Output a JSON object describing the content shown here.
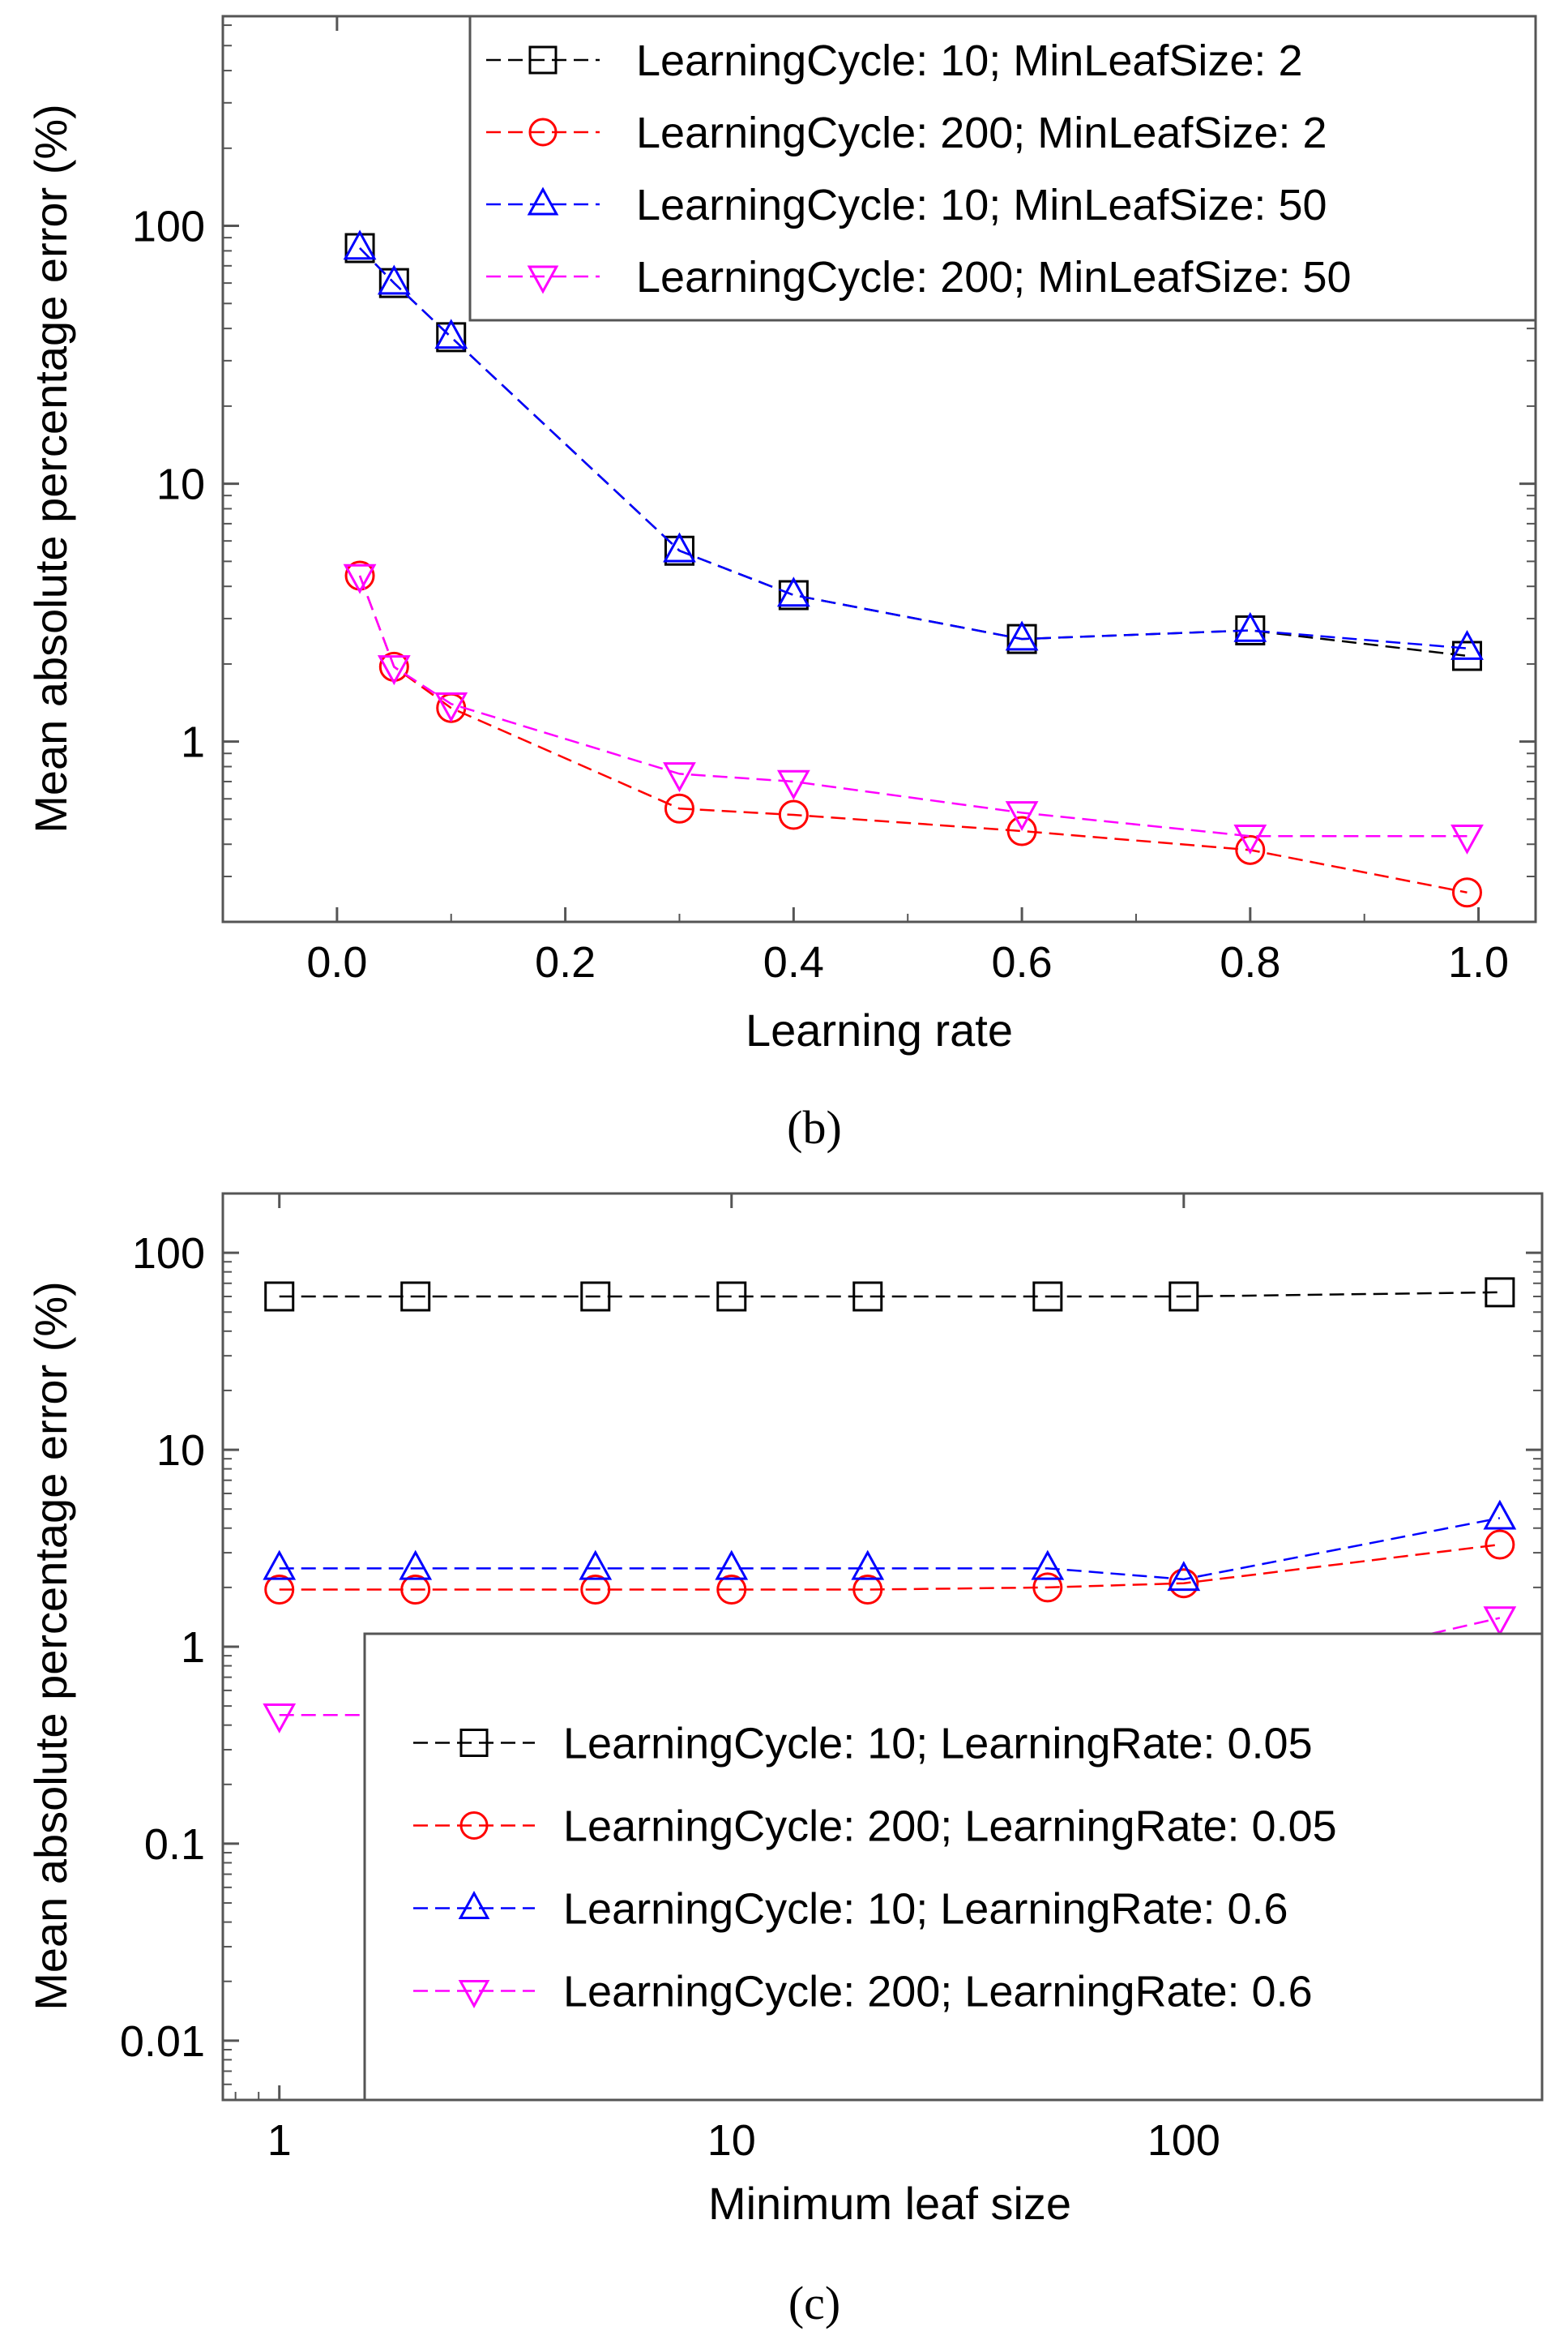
{
  "chart_data": [
    {
      "type": "line",
      "panel_label": "(b)",
      "xlabel": "Learning rate",
      "ylabel": "Mean absolute percentage error (%)",
      "xlim": [
        -0.1,
        1.05
      ],
      "ylim": [
        0.2,
        650
      ],
      "yscale": "log",
      "xticks": [
        0.0,
        0.2,
        0.4,
        0.6,
        0.8,
        1.0
      ],
      "xtick_labels": [
        "0.0",
        "0.2",
        "0.4",
        "0.6",
        "0.8",
        "1.0"
      ],
      "yticks": [
        1,
        10,
        100
      ],
      "ytick_labels": [
        "1",
        "10",
        "100"
      ],
      "legend_position": "top-right",
      "series": [
        {
          "name": "LearningCycle: 10; MinLeafSize: 2",
          "marker": "square",
          "color": "#000000",
          "x": [
            0.02,
            0.05,
            0.1,
            0.3,
            0.4,
            0.6,
            0.8,
            0.99
          ],
          "y": [
            82,
            60,
            37,
            5.5,
            3.7,
            2.5,
            2.7,
            2.15
          ]
        },
        {
          "name": "LearningCycle: 200; MinLeafSize: 2",
          "marker": "circle",
          "color": "#ff0000",
          "x": [
            0.02,
            0.05,
            0.1,
            0.3,
            0.4,
            0.6,
            0.8,
            0.99
          ],
          "y": [
            4.4,
            1.95,
            1.35,
            0.55,
            0.52,
            0.45,
            0.38,
            0.26
          ]
        },
        {
          "name": "LearningCycle: 10; MinLeafSize: 50",
          "marker": "triangle-up",
          "color": "#0000ff",
          "x": [
            0.02,
            0.05,
            0.1,
            0.3,
            0.4,
            0.6,
            0.8,
            0.99
          ],
          "y": [
            82,
            60,
            37,
            5.5,
            3.7,
            2.5,
            2.7,
            2.3
          ]
        },
        {
          "name": "LearningCycle: 200; MinLeafSize: 50",
          "marker": "triangle-down",
          "color": "#ff00ff",
          "x": [
            0.02,
            0.05,
            0.1,
            0.3,
            0.4,
            0.6,
            0.8,
            0.99
          ],
          "y": [
            4.4,
            1.95,
            1.4,
            0.75,
            0.7,
            0.53,
            0.43,
            0.43
          ]
        }
      ]
    },
    {
      "type": "line",
      "panel_label": "(c)",
      "xlabel": "Minimum leaf size",
      "ylabel": "Mean absolute percentage error (%)",
      "xscale": "log",
      "yscale": "log",
      "xlim": [
        0.75,
        620
      ],
      "ylim": [
        0.005,
        200
      ],
      "xticks": [
        1,
        10,
        100
      ],
      "xtick_labels": [
        "1",
        "10",
        "100"
      ],
      "yticks": [
        0.01,
        0.1,
        1,
        10,
        100
      ],
      "ytick_labels": [
        "0.01",
        "0.1",
        "1",
        "10",
        "100"
      ],
      "legend_position": "bottom-right",
      "series": [
        {
          "name": "LearningCycle: 10; LearningRate: 0.05",
          "marker": "square",
          "color": "#000000",
          "x": [
            1,
            2,
            5,
            10,
            20,
            50,
            100,
            500
          ],
          "y": [
            60,
            60,
            60,
            60,
            60,
            60,
            60,
            63
          ]
        },
        {
          "name": "LearningCycle: 200; LearningRate: 0.05",
          "marker": "circle",
          "color": "#ff0000",
          "x": [
            1,
            2,
            5,
            10,
            20,
            50,
            100,
            500
          ],
          "y": [
            1.95,
            1.95,
            1.95,
            1.95,
            1.95,
            2.0,
            2.1,
            3.3
          ]
        },
        {
          "name": "LearningCycle: 10; LearningRate: 0.6",
          "marker": "triangle-up",
          "color": "#0000ff",
          "x": [
            1,
            2,
            5,
            10,
            20,
            50,
            100,
            500
          ],
          "y": [
            2.5,
            2.5,
            2.5,
            2.5,
            2.5,
            2.5,
            2.2,
            4.5
          ]
        },
        {
          "name": "LearningCycle: 200; LearningRate: 0.6",
          "marker": "triangle-down",
          "color": "#ff00ff",
          "x": [
            1,
            2,
            5,
            10,
            20,
            50,
            100,
            500
          ],
          "y": [
            0.45,
            0.45,
            0.45,
            0.45,
            0.52,
            0.53,
            0.6,
            1.4
          ]
        }
      ]
    }
  ]
}
